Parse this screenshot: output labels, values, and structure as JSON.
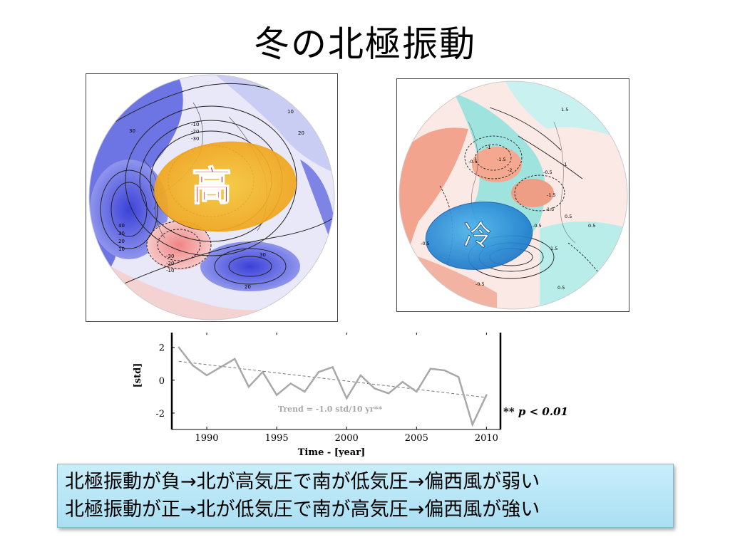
{
  "title": "冬の北極振動",
  "left_map": {
    "label": "高",
    "contour_labels": [
      "10",
      "20",
      "30",
      "-10",
      "-20",
      "-30",
      "40",
      "30",
      "20",
      "10",
      "-30",
      "-20",
      "-10",
      "30",
      "20"
    ]
  },
  "right_map": {
    "label": "冷",
    "contour_labels": [
      "1.5",
      "-0.5",
      "-1",
      "-1.5",
      "-2",
      "-1",
      "-0.5",
      "-1.5",
      "1.5",
      "-0.5",
      "0.5",
      "-0.5",
      "0.5",
      "1.5",
      "-0.5",
      "0.5"
    ]
  },
  "chart_data": {
    "type": "line",
    "title": "",
    "xlabel": "Time - [year]",
    "ylabel": "[std]",
    "xlim": [
      1987.5,
      2011
    ],
    "ylim": [
      -3,
      2.9
    ],
    "xticks": [
      1990,
      1995,
      2000,
      2005,
      2010
    ],
    "yticks": [
      2,
      0,
      -2
    ],
    "series": [
      {
        "x": [
          1988,
          1989,
          1990,
          1991,
          1992,
          1993,
          1994,
          1995,
          1996,
          1997,
          1998,
          1999,
          2000,
          2001,
          2002,
          2003,
          2004,
          2005,
          2006,
          2007,
          2008,
          2009,
          2010
        ],
        "values": [
          2.0,
          0.9,
          0.3,
          0.8,
          1.3,
          -0.4,
          0.5,
          -0.9,
          -0.2,
          -0.7,
          0.5,
          0.8,
          -1.1,
          0.3,
          -0.5,
          -0.8,
          -0.1,
          -0.7,
          0.7,
          0.6,
          0.2,
          -2.7,
          -0.9
        ],
        "color": "#a8a8a8"
      }
    ],
    "trend": {
      "x": [
        1988,
        2010
      ],
      "values": [
        1.15,
        -1.05
      ],
      "color": "#777777"
    },
    "trend_label": "Trend = -1.0 std/10 yr**",
    "significance_note": "** p < 0.01"
  },
  "summary": {
    "line1": "北極振動が負→北が高気圧で南が低気圧→偏西風が弱い",
    "line2": "北極振動が正→北が低気圧で南が高気圧→偏西風が強い"
  }
}
